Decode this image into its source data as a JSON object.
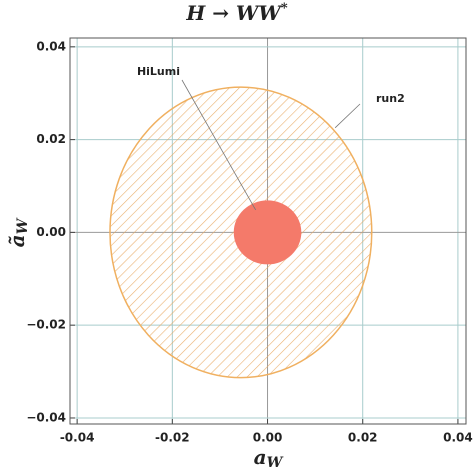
{
  "chart_data": {
    "type": "region",
    "title": "H → WW",
    "title_sup": "*",
    "x_label": "a",
    "x_label_sub": "W",
    "y_label": "ã",
    "y_label_sub": "W",
    "xlim": [
      -0.0415,
      0.0417
    ],
    "ylim": [
      -0.0413,
      0.0419
    ],
    "xticks": [
      -0.04,
      -0.02,
      {
        "value": 0,
        "label": "0.00"
      },
      0.02,
      0.04
    ],
    "yticks": [
      {
        "value": -0.04,
        "label": "−0.04"
      },
      {
        "value": -0.02,
        "label": "−0.02"
      },
      {
        "value": 0,
        "label": "0.00"
      },
      0.02,
      0.04
    ],
    "grid": true,
    "series": [
      {
        "name": "run2",
        "color": "#f0b060",
        "hatched": true,
        "cx": -0.0056,
        "cy": 0,
        "rx": 0.0275,
        "ry": 0.0313
      },
      {
        "name": "HiLumi",
        "color": "#f47a6a",
        "hatched": false,
        "cx": 0,
        "cy": 0,
        "rx": 0.0071,
        "ry": 0.0069
      }
    ]
  }
}
